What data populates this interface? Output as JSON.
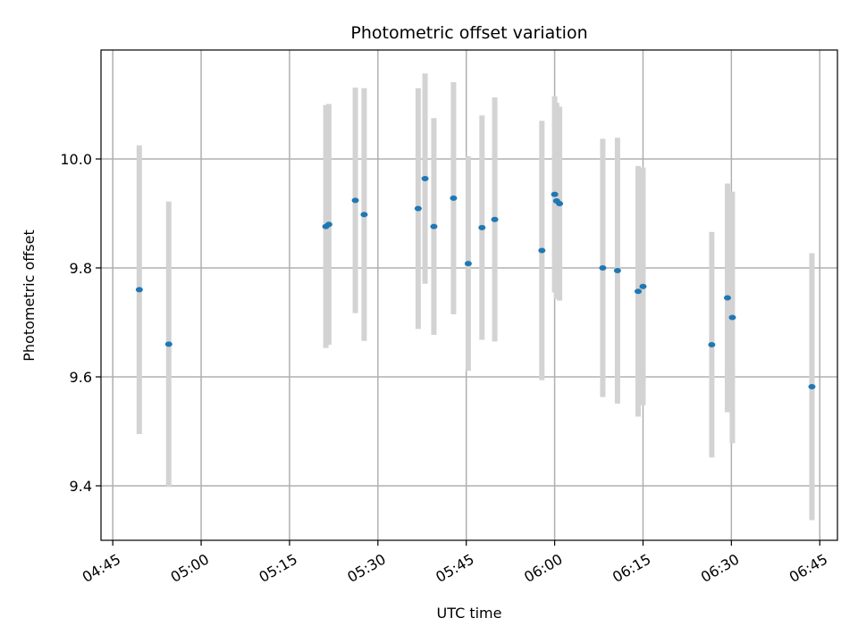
{
  "chart_data": {
    "type": "scatter",
    "title": "Photometric offset variation",
    "xlabel": "UTC time",
    "ylabel": "Photometric offset",
    "x_unit": "HH:MM UTC",
    "xlim": [
      "04:43",
      "06:48"
    ],
    "ylim": [
      9.3,
      10.2
    ],
    "grid": true,
    "legend": false,
    "colors": {
      "marker": "#1f77b4",
      "errorbar": "#d3d3d3"
    },
    "xticks": [
      "04:45",
      "05:00",
      "05:15",
      "05:30",
      "05:45",
      "06:00",
      "06:15",
      "06:30",
      "06:45"
    ],
    "yticks": [
      9.4,
      9.6,
      9.8,
      10.0
    ],
    "ytick_labels": [
      "9.4",
      "9.6",
      "9.8",
      "10.0"
    ],
    "points": [
      {
        "t": "04:49:30",
        "y": 9.76,
        "err": 0.265
      },
      {
        "t": "04:54:30",
        "y": 9.66,
        "err": 0.262
      },
      {
        "t": "05:21:10",
        "y": 9.876,
        "err": 0.223
      },
      {
        "t": "05:21:40",
        "y": 9.88,
        "err": 0.221
      },
      {
        "t": "05:26:10",
        "y": 9.924,
        "err": 0.207
      },
      {
        "t": "05:27:40",
        "y": 9.898,
        "err": 0.232
      },
      {
        "t": "05:36:50",
        "y": 9.909,
        "err": 0.221
      },
      {
        "t": "05:38:00",
        "y": 9.964,
        "err": 0.193
      },
      {
        "t": "05:39:30",
        "y": 9.876,
        "err": 0.199
      },
      {
        "t": "05:42:50",
        "y": 9.928,
        "err": 0.213
      },
      {
        "t": "05:45:20",
        "y": 9.808,
        "err": 0.197
      },
      {
        "t": "05:47:40",
        "y": 9.874,
        "err": 0.206
      },
      {
        "t": "05:49:50",
        "y": 9.889,
        "err": 0.224
      },
      {
        "t": "05:57:50",
        "y": 9.832,
        "err": 0.238
      },
      {
        "t": "06:00:00",
        "y": 9.935,
        "err": 0.18
      },
      {
        "t": "06:00:20",
        "y": 9.923,
        "err": 0.18
      },
      {
        "t": "06:00:50",
        "y": 9.918,
        "err": 0.178
      },
      {
        "t": "06:08:10",
        "y": 9.8,
        "err": 0.237
      },
      {
        "t": "06:10:40",
        "y": 9.795,
        "err": 0.244
      },
      {
        "t": "06:14:10",
        "y": 9.757,
        "err": 0.23
      },
      {
        "t": "06:15:00",
        "y": 9.766,
        "err": 0.218
      },
      {
        "t": "06:26:40",
        "y": 9.659,
        "err": 0.207
      },
      {
        "t": "06:29:20",
        "y": 9.745,
        "err": 0.21
      },
      {
        "t": "06:30:10",
        "y": 9.709,
        "err": 0.231
      },
      {
        "t": "06:43:40",
        "y": 9.582,
        "err": 0.245
      }
    ]
  }
}
